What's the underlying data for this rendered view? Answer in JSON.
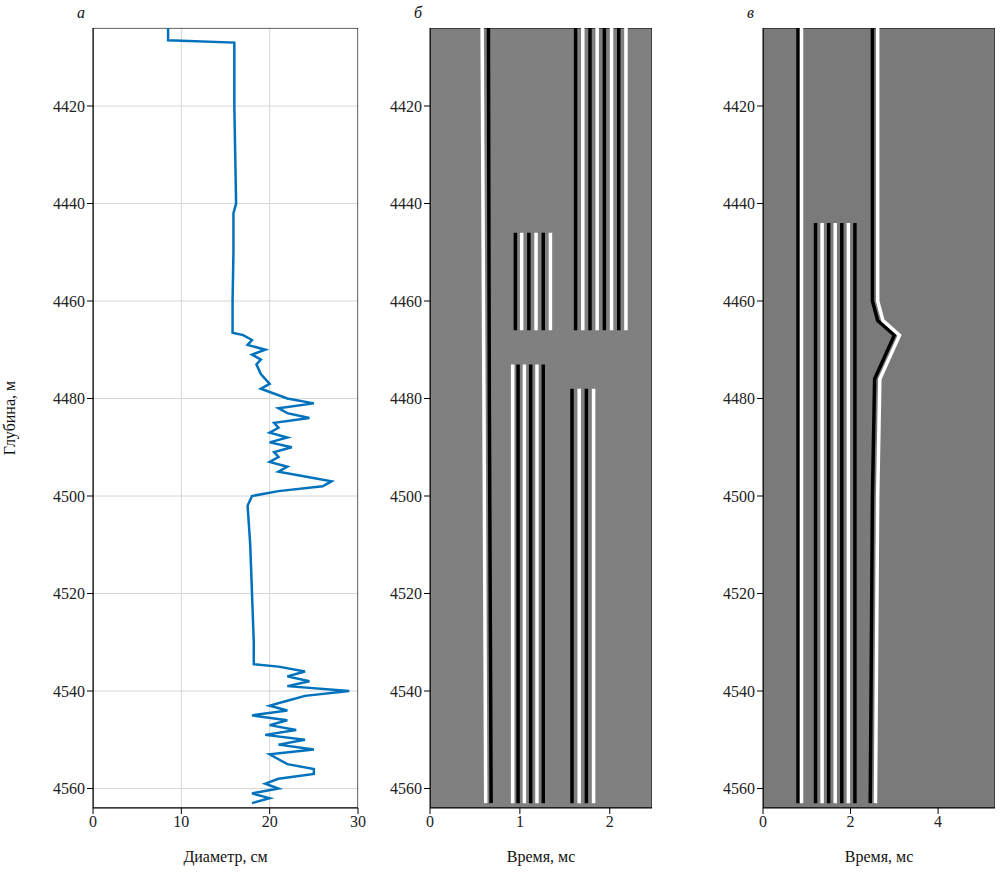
{
  "chart_data": [
    {
      "panel_label": "а",
      "type": "line",
      "x_label": "Диаметр, см",
      "y_label": "Глубина, м",
      "xlim": [
        0,
        30
      ],
      "xticks": [
        0,
        10,
        20,
        30
      ],
      "ylim": [
        4404,
        4564
      ],
      "yticks": [
        4420,
        4440,
        4460,
        4480,
        4500,
        4520,
        4540,
        4560
      ],
      "grid": true,
      "color": "#0072bd",
      "series": [
        {
          "color": "#0072bd",
          "x": [
            8.5,
            8.5,
            16,
            16,
            16.1,
            16.2,
            15.9,
            15.9,
            15.8,
            15.8,
            17,
            18,
            17.5,
            19.5,
            18,
            19,
            18.5,
            19,
            20,
            19,
            22,
            25,
            21,
            22,
            24.5,
            20.5,
            21,
            20,
            22,
            20,
            22.5,
            20.5,
            21,
            20,
            22,
            21,
            24,
            27,
            26,
            21,
            18,
            17.5,
            17.8,
            18,
            18.2,
            18.2,
            21,
            24,
            22,
            24.5,
            22,
            29,
            24,
            22,
            20,
            22,
            18,
            22,
            20,
            23,
            19.5,
            24,
            21,
            25,
            20,
            21,
            22,
            25,
            25,
            21,
            19.5,
            21,
            18,
            20,
            18
          ],
          "y": [
            4404,
            4406.5,
            4407,
            4420,
            4430,
            4440,
            4442,
            4450,
            4460,
            4466.5,
            4467,
            4468,
            4469,
            4470,
            4471,
            4472,
            4473,
            4475,
            4477,
            4478,
            4480,
            4481,
            4482,
            4483,
            4484,
            4485,
            4486,
            4487,
            4488,
            4489,
            4490,
            4491,
            4492,
            4493,
            4494,
            4495,
            4496,
            4497,
            4498,
            4499,
            4500,
            4502,
            4510,
            4520,
            4530,
            4534.5,
            4535,
            4536,
            4537,
            4538,
            4539,
            4540,
            4541,
            4542,
            4543,
            4544,
            4545,
            4546,
            4547,
            4548,
            4549,
            4550,
            4551,
            4552,
            4553,
            4554,
            4555,
            4556,
            4557,
            4558,
            4559,
            4560,
            4561,
            4562,
            4563
          ]
        }
      ]
    },
    {
      "panel_label": "б",
      "type": "wiggle",
      "x_label": "Время, мс",
      "xlim": [
        0,
        2.47
      ],
      "xticks": [
        0,
        1,
        2
      ],
      "ylim": [
        4404,
        4564
      ],
      "yticks": [
        4420,
        4440,
        4460,
        4480,
        4500,
        4520,
        4540,
        4560
      ],
      "grid": false,
      "color": "#808080",
      "series": [
        {
          "color": "#ffffff",
          "x": [
            0.58,
            0.6,
            0.62
          ],
          "y": [
            4404,
            4480,
            4563
          ]
        },
        {
          "color": "#000000",
          "x": [
            0.65,
            0.66,
            0.68
          ],
          "y": [
            4404,
            4480,
            4563
          ]
        },
        {
          "color": "#000000",
          "x": [
            1.62,
            1.62
          ],
          "y": [
            4404,
            4466
          ]
        },
        {
          "color": "#ffffff",
          "x": [
            1.7,
            1.7
          ],
          "y": [
            4404,
            4466
          ]
        },
        {
          "color": "#000000",
          "x": [
            1.78,
            1.78
          ],
          "y": [
            4404,
            4466
          ]
        },
        {
          "color": "#ffffff",
          "x": [
            1.86,
            1.86
          ],
          "y": [
            4404,
            4466
          ]
        },
        {
          "color": "#000000",
          "x": [
            1.94,
            1.94
          ],
          "y": [
            4404,
            4466
          ]
        },
        {
          "color": "#ffffff",
          "x": [
            2.02,
            2.02
          ],
          "y": [
            4404,
            4466
          ]
        },
        {
          "color": "#000000",
          "x": [
            2.1,
            2.1
          ],
          "y": [
            4404,
            4466
          ]
        },
        {
          "color": "#ffffff",
          "x": [
            2.18,
            2.18
          ],
          "y": [
            4404,
            4466
          ]
        },
        {
          "color": "#000000",
          "x": [
            0.95,
            0.95
          ],
          "y": [
            4446,
            4466
          ]
        },
        {
          "color": "#ffffff",
          "x": [
            1.02,
            1.02
          ],
          "y": [
            4446,
            4466
          ]
        },
        {
          "color": "#000000",
          "x": [
            1.1,
            1.1
          ],
          "y": [
            4446,
            4466
          ]
        },
        {
          "color": "#ffffff",
          "x": [
            1.18,
            1.18
          ],
          "y": [
            4446,
            4466
          ]
        },
        {
          "color": "#000000",
          "x": [
            1.26,
            1.26
          ],
          "y": [
            4446,
            4466
          ]
        },
        {
          "color": "#ffffff",
          "x": [
            1.34,
            1.34
          ],
          "y": [
            4446,
            4466
          ]
        },
        {
          "color": "#ffffff",
          "x": [
            0.92,
            0.92
          ],
          "y": [
            4473,
            4563
          ]
        },
        {
          "color": "#000000",
          "x": [
            0.98,
            0.98
          ],
          "y": [
            4473,
            4563
          ]
        },
        {
          "color": "#ffffff",
          "x": [
            1.05,
            1.05
          ],
          "y": [
            4473,
            4563
          ]
        },
        {
          "color": "#000000",
          "x": [
            1.12,
            1.12
          ],
          "y": [
            4473,
            4563
          ]
        },
        {
          "color": "#ffffff",
          "x": [
            1.19,
            1.19
          ],
          "y": [
            4473,
            4563
          ]
        },
        {
          "color": "#000000",
          "x": [
            1.26,
            1.26
          ],
          "y": [
            4473,
            4563
          ]
        },
        {
          "color": "#000000",
          "x": [
            1.58,
            1.58
          ],
          "y": [
            4478,
            4563
          ]
        },
        {
          "color": "#ffffff",
          "x": [
            1.66,
            1.66
          ],
          "y": [
            4478,
            4563
          ]
        },
        {
          "color": "#000000",
          "x": [
            1.74,
            1.74
          ],
          "y": [
            4478,
            4563
          ]
        },
        {
          "color": "#ffffff",
          "x": [
            1.82,
            1.82
          ],
          "y": [
            4478,
            4563
          ]
        }
      ]
    },
    {
      "panel_label": "в",
      "type": "wiggle",
      "x_label": "Время, мс",
      "xlim": [
        0,
        5.3
      ],
      "xticks": [
        0,
        2,
        4
      ],
      "ylim": [
        4404,
        4564
      ],
      "yticks": [
        4420,
        4440,
        4460,
        4480,
        4500,
        4520,
        4540,
        4560
      ],
      "grid": false,
      "color": "#7a7a7a",
      "series": [
        {
          "color": "#000000",
          "x": [
            0.8,
            0.8
          ],
          "y": [
            4404,
            4563
          ]
        },
        {
          "color": "#ffffff",
          "x": [
            0.88,
            0.88
          ],
          "y": [
            4404,
            4563
          ]
        },
        {
          "color": "#000000",
          "x": [
            1.2,
            1.2
          ],
          "y": [
            4444,
            4563
          ]
        },
        {
          "color": "#ffffff",
          "x": [
            1.35,
            1.35
          ],
          "y": [
            4444,
            4563
          ]
        },
        {
          "color": "#000000",
          "x": [
            1.5,
            1.5
          ],
          "y": [
            4444,
            4563
          ]
        },
        {
          "color": "#ffffff",
          "x": [
            1.65,
            1.65
          ],
          "y": [
            4444,
            4563
          ]
        },
        {
          "color": "#000000",
          "x": [
            1.8,
            1.8
          ],
          "y": [
            4444,
            4563
          ]
        },
        {
          "color": "#ffffff",
          "x": [
            1.95,
            1.95
          ],
          "y": [
            4444,
            4563
          ]
        },
        {
          "color": "#000000",
          "x": [
            2.1,
            2.1
          ],
          "y": [
            4444,
            4563
          ]
        },
        {
          "color": "#000000",
          "x": [
            2.5,
            2.5,
            2.62,
            3.0,
            2.8,
            2.55,
            2.5,
            2.45
          ],
          "y": [
            4404,
            4460,
            4464,
            4467,
            4471,
            4476,
            4500,
            4563
          ]
        },
        {
          "color": "#ffffff",
          "x": [
            2.62,
            2.62,
            2.74,
            3.12,
            2.92,
            2.67,
            2.62,
            2.57
          ],
          "y": [
            4404,
            4460,
            4464,
            4467,
            4471,
            4476,
            4500,
            4563
          ]
        }
      ]
    }
  ]
}
